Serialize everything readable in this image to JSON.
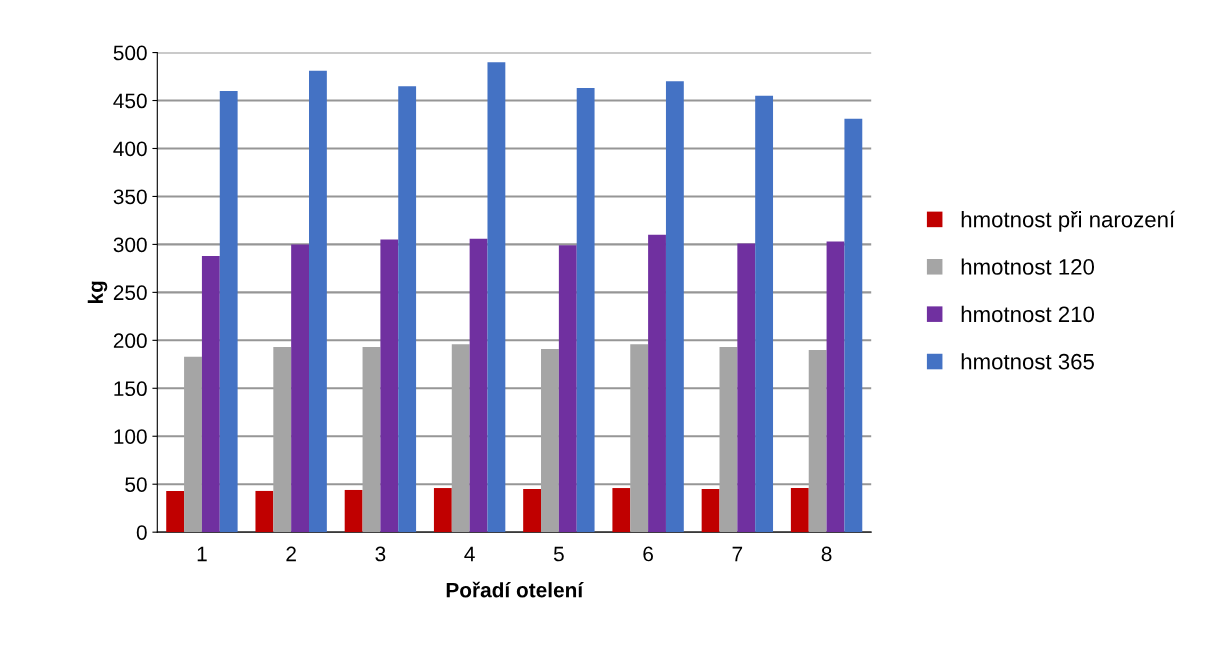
{
  "chart_data": {
    "type": "bar",
    "xlabel": "Pořadí otelení",
    "ylabel": "kg",
    "categories": [
      "1",
      "2",
      "3",
      "4",
      "5",
      "6",
      "7",
      "8"
    ],
    "series": [
      {
        "name": "hmotnost při narození",
        "color": "#c00000",
        "values": [
          43,
          43,
          44,
          46,
          45,
          46,
          45,
          46
        ]
      },
      {
        "name": "hmotnost 120",
        "color": "#a5a5a5",
        "values": [
          183,
          193,
          193,
          196,
          191,
          196,
          193,
          190
        ]
      },
      {
        "name": "hmotnost 210",
        "color": "#7030a0",
        "values": [
          288,
          300,
          305,
          306,
          299,
          310,
          301,
          303
        ]
      },
      {
        "name": "hmotnost 365",
        "color": "#4472c4",
        "values": [
          460,
          481,
          465,
          490,
          463,
          470,
          455,
          431
        ]
      }
    ],
    "ylim": [
      0,
      500
    ],
    "yticks": [
      0,
      50,
      100,
      150,
      200,
      250,
      300,
      350,
      400,
      450,
      500
    ],
    "grid": "y",
    "legend": "right"
  }
}
